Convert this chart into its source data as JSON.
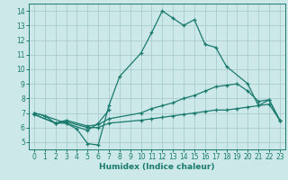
{
  "xlabel": "Humidex (Indice chaleur)",
  "bg_color": "#cce8e8",
  "grid_color": "#aacccc",
  "line_color": "#1a7a6e",
  "xlim": [
    -0.5,
    23.5
  ],
  "ylim": [
    4.5,
    14.5
  ],
  "xticks": [
    0,
    1,
    2,
    3,
    4,
    5,
    6,
    7,
    8,
    9,
    10,
    11,
    12,
    13,
    14,
    15,
    16,
    17,
    18,
    19,
    20,
    21,
    22,
    23
  ],
  "yticks": [
    5,
    6,
    7,
    8,
    9,
    10,
    11,
    12,
    13,
    14
  ],
  "lines": [
    {
      "x": [
        0,
        1,
        2,
        3,
        4,
        5,
        6,
        7,
        8,
        10,
        11,
        12,
        13,
        14,
        15,
        16,
        17,
        18,
        20,
        21,
        22,
        23
      ],
      "y": [
        7.0,
        6.8,
        6.3,
        6.3,
        5.9,
        4.9,
        4.8,
        7.5,
        9.5,
        11.1,
        12.5,
        14.0,
        13.5,
        13.0,
        13.4,
        11.7,
        11.5,
        10.2,
        9.0,
        7.5,
        7.9,
        6.5
      ]
    },
    {
      "x": [
        0,
        1,
        3,
        5,
        6,
        7
      ],
      "y": [
        7.0,
        6.8,
        6.3,
        5.8,
        6.3,
        7.2
      ]
    },
    {
      "x": [
        0,
        2,
        3,
        5,
        6,
        7,
        10,
        11,
        12,
        13,
        14,
        15,
        16,
        17,
        18,
        19,
        20,
        21,
        22,
        23
      ],
      "y": [
        6.9,
        6.3,
        6.4,
        6.0,
        6.0,
        6.3,
        6.5,
        6.6,
        6.7,
        6.8,
        6.9,
        7.0,
        7.1,
        7.2,
        7.2,
        7.3,
        7.4,
        7.5,
        7.6,
        6.5
      ]
    },
    {
      "x": [
        0,
        2,
        3,
        5,
        6,
        7,
        10,
        11,
        12,
        13,
        14,
        15,
        16,
        17,
        18,
        19,
        20,
        21,
        22,
        23
      ],
      "y": [
        6.9,
        6.3,
        6.5,
        6.1,
        6.2,
        6.6,
        7.0,
        7.3,
        7.5,
        7.7,
        8.0,
        8.2,
        8.5,
        8.8,
        8.9,
        9.0,
        8.5,
        7.8,
        7.9,
        6.5
      ]
    }
  ]
}
